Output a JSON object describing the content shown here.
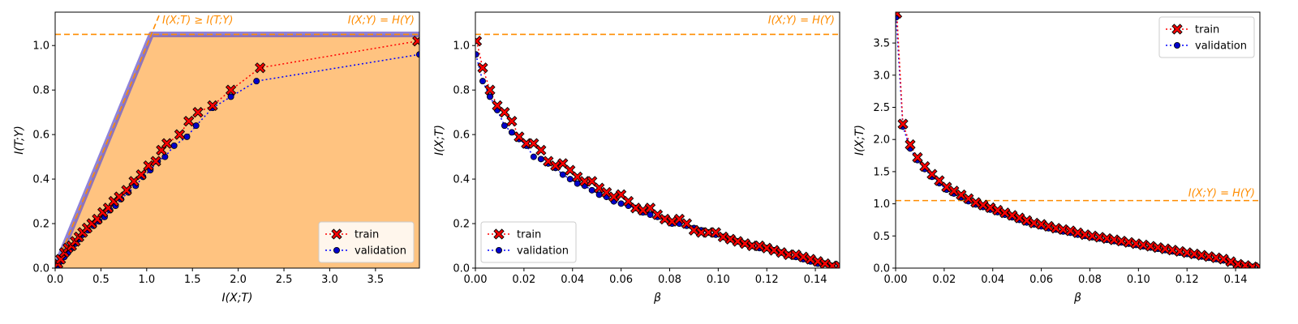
{
  "colors": {
    "train": "#ff0000",
    "train_edge": "#000000",
    "validation": "#0000cc",
    "validation_line": "#0000ff",
    "bound": "#ff8c00",
    "region": "#ffc380",
    "boundary": "#6a5acd"
  },
  "legend": {
    "train": "train",
    "validation": "validation"
  },
  "chart_data": [
    {
      "id": "left",
      "type": "scatter",
      "xlabel": "I(X;T)",
      "ylabel": "I(T;Y)",
      "xlim": [
        0,
        3.98
      ],
      "ylim": [
        0,
        1.15
      ],
      "xticks": [
        0,
        0.5,
        1,
        1.5,
        2,
        2.5,
        3,
        3.5
      ],
      "xtick_labels": [
        "0.0",
        "0.5",
        "1.0",
        "1.5",
        "2.0",
        "2.5",
        "3.0",
        "3.5"
      ],
      "yticks": [
        0,
        0.2,
        0.4,
        0.6,
        0.8,
        1
      ],
      "ytick_labels": [
        "0.0",
        "0.2",
        "0.4",
        "0.6",
        "0.8",
        "1.0"
      ],
      "hline": {
        "y": 1.05,
        "label": "I(X;Y) = H(Y)"
      },
      "diag_label": "I(X;T) ≥ I(T;Y)",
      "legend_position": "lower-right",
      "series": [
        {
          "name": "train",
          "x": [
            0.03,
            0.06,
            0.1,
            0.14,
            0.18,
            0.22,
            0.26,
            0.3,
            0.35,
            0.4,
            0.46,
            0.52,
            0.58,
            0.64,
            0.7,
            0.78,
            0.86,
            0.94,
            1.02,
            1.1,
            1.16,
            1.22,
            1.36,
            1.46,
            1.56,
            1.72,
            1.92,
            2.24,
            3.96
          ],
          "y": [
            0.02,
            0.04,
            0.07,
            0.09,
            0.1,
            0.12,
            0.14,
            0.16,
            0.18,
            0.2,
            0.22,
            0.25,
            0.27,
            0.3,
            0.32,
            0.35,
            0.39,
            0.42,
            0.46,
            0.48,
            0.53,
            0.56,
            0.6,
            0.66,
            0.7,
            0.73,
            0.8,
            0.9,
            1.02
          ]
        },
        {
          "name": "validation",
          "x": [
            0.02,
            0.06,
            0.1,
            0.14,
            0.18,
            0.22,
            0.26,
            0.3,
            0.36,
            0.42,
            0.48,
            0.54,
            0.6,
            0.66,
            0.72,
            0.8,
            0.88,
            0.96,
            1.04,
            1.12,
            1.2,
            1.3,
            1.44,
            1.54,
            1.72,
            1.92,
            2.2,
            3.98
          ],
          "y": [
            0.01,
            0.03,
            0.05,
            0.07,
            0.09,
            0.11,
            0.13,
            0.15,
            0.17,
            0.19,
            0.21,
            0.23,
            0.26,
            0.28,
            0.31,
            0.34,
            0.37,
            0.41,
            0.44,
            0.48,
            0.5,
            0.55,
            0.59,
            0.64,
            0.72,
            0.77,
            0.84,
            0.96
          ]
        }
      ]
    },
    {
      "id": "middle",
      "type": "scatter",
      "xlabel": "β",
      "ylabel": "I(X;T)",
      "xlim": [
        0,
        0.15
      ],
      "ylim": [
        0,
        1.15
      ],
      "xticks": [
        0,
        0.02,
        0.04,
        0.06,
        0.08,
        0.1,
        0.12,
        0.14
      ],
      "xtick_labels": [
        "0.00",
        "0.02",
        "0.04",
        "0.06",
        "0.08",
        "0.10",
        "0.12",
        "0.14"
      ],
      "yticks": [
        0,
        0.2,
        0.4,
        0.6,
        0.8,
        1
      ],
      "ytick_labels": [
        "0.0",
        "0.2",
        "0.4",
        "0.6",
        "0.8",
        "1.0"
      ],
      "hline": {
        "y": 1.05,
        "label": "I(X;Y) = H(Y)"
      },
      "legend_position": "lower-left",
      "series": [
        {
          "name": "train",
          "x": [
            0.0005,
            0.003,
            0.006,
            0.009,
            0.012,
            0.015,
            0.018,
            0.021,
            0.024,
            0.027,
            0.03,
            0.033,
            0.036,
            0.039,
            0.042,
            0.045,
            0.048,
            0.051,
            0.054,
            0.057,
            0.06,
            0.063,
            0.066,
            0.069,
            0.072,
            0.075,
            0.078,
            0.081,
            0.084,
            0.087,
            0.09,
            0.093,
            0.096,
            0.099,
            0.102,
            0.105,
            0.108,
            0.111,
            0.114,
            0.117,
            0.12,
            0.123,
            0.126,
            0.129,
            0.132,
            0.135,
            0.138,
            0.141,
            0.144,
            0.147,
            0.15
          ],
          "y": [
            1.02,
            0.9,
            0.8,
            0.73,
            0.7,
            0.66,
            0.59,
            0.56,
            0.56,
            0.53,
            0.48,
            0.46,
            0.47,
            0.44,
            0.41,
            0.39,
            0.39,
            0.36,
            0.34,
            0.32,
            0.33,
            0.3,
            0.27,
            0.26,
            0.27,
            0.24,
            0.22,
            0.21,
            0.22,
            0.2,
            0.17,
            0.16,
            0.16,
            0.16,
            0.14,
            0.13,
            0.12,
            0.11,
            0.1,
            0.1,
            0.09,
            0.08,
            0.07,
            0.06,
            0.06,
            0.05,
            0.04,
            0.03,
            0.02,
            0.01,
            0.01
          ]
        },
        {
          "name": "validation",
          "x": [
            0.0002,
            0.003,
            0.006,
            0.009,
            0.012,
            0.015,
            0.018,
            0.021,
            0.024,
            0.027,
            0.03,
            0.033,
            0.036,
            0.039,
            0.042,
            0.045,
            0.048,
            0.051,
            0.054,
            0.057,
            0.06,
            0.063,
            0.066,
            0.069,
            0.072,
            0.075,
            0.078,
            0.081,
            0.084,
            0.087,
            0.09,
            0.093,
            0.096,
            0.099,
            0.102,
            0.105,
            0.108,
            0.111,
            0.114,
            0.117,
            0.12,
            0.123,
            0.126,
            0.129,
            0.132,
            0.135,
            0.138,
            0.141,
            0.144,
            0.147,
            0.15
          ],
          "y": [
            0.96,
            0.84,
            0.77,
            0.71,
            0.64,
            0.61,
            0.58,
            0.55,
            0.5,
            0.49,
            0.47,
            0.45,
            0.42,
            0.4,
            0.38,
            0.37,
            0.35,
            0.33,
            0.32,
            0.3,
            0.29,
            0.28,
            0.27,
            0.25,
            0.24,
            0.23,
            0.22,
            0.2,
            0.2,
            0.19,
            0.18,
            0.17,
            0.16,
            0.15,
            0.14,
            0.13,
            0.12,
            0.11,
            0.1,
            0.09,
            0.09,
            0.08,
            0.07,
            0.06,
            0.05,
            0.04,
            0.03,
            0.02,
            0.02,
            0.01,
            0.01
          ]
        }
      ]
    },
    {
      "id": "right",
      "type": "scatter",
      "xlabel": "β",
      "ylabel": "I(X;T)",
      "xlim": [
        0,
        0.15
      ],
      "ylim": [
        0,
        3.98
      ],
      "xticks": [
        0,
        0.02,
        0.04,
        0.06,
        0.08,
        0.1,
        0.12,
        0.14
      ],
      "xtick_labels": [
        "0.00",
        "0.02",
        "0.04",
        "0.06",
        "0.08",
        "0.10",
        "0.12",
        "0.14"
      ],
      "yticks": [
        0,
        0.5,
        1,
        1.5,
        2,
        2.5,
        3,
        3.5
      ],
      "ytick_labels": [
        "0.0",
        "0.5",
        "1.0",
        "1.5",
        "2.0",
        "2.5",
        "3.0",
        "3.5"
      ],
      "hline": {
        "y": 1.05,
        "label": "I(X;Y) = H(Y)"
      },
      "legend_position": "top-right",
      "series": [
        {
          "name": "train",
          "x": [
            0.0005,
            0.003,
            0.006,
            0.009,
            0.012,
            0.015,
            0.018,
            0.021,
            0.024,
            0.027,
            0.03,
            0.033,
            0.036,
            0.039,
            0.042,
            0.045,
            0.048,
            0.051,
            0.054,
            0.057,
            0.06,
            0.063,
            0.066,
            0.069,
            0.072,
            0.075,
            0.078,
            0.081,
            0.084,
            0.087,
            0.09,
            0.093,
            0.096,
            0.099,
            0.102,
            0.105,
            0.108,
            0.111,
            0.114,
            0.117,
            0.12,
            0.123,
            0.126,
            0.129,
            0.132,
            0.135,
            0.138,
            0.141,
            0.144,
            0.147,
            0.15
          ],
          "y": [
            3.96,
            2.24,
            1.92,
            1.72,
            1.58,
            1.46,
            1.36,
            1.26,
            1.2,
            1.14,
            1.08,
            1.02,
            0.98,
            0.94,
            0.9,
            0.86,
            0.82,
            0.78,
            0.74,
            0.7,
            0.68,
            0.65,
            0.62,
            0.6,
            0.58,
            0.55,
            0.52,
            0.5,
            0.48,
            0.46,
            0.44,
            0.42,
            0.4,
            0.38,
            0.36,
            0.34,
            0.32,
            0.3,
            0.28,
            0.26,
            0.24,
            0.22,
            0.2,
            0.18,
            0.16,
            0.14,
            0.1,
            0.06,
            0.04,
            0.02,
            0.01
          ]
        },
        {
          "name": "validation",
          "x": [
            0.0002,
            0.003,
            0.006,
            0.009,
            0.012,
            0.015,
            0.018,
            0.021,
            0.024,
            0.027,
            0.03,
            0.033,
            0.036,
            0.039,
            0.042,
            0.045,
            0.048,
            0.051,
            0.054,
            0.057,
            0.06,
            0.063,
            0.066,
            0.069,
            0.072,
            0.075,
            0.078,
            0.081,
            0.084,
            0.087,
            0.09,
            0.093,
            0.096,
            0.099,
            0.102,
            0.105,
            0.108,
            0.111,
            0.114,
            0.117,
            0.12,
            0.123,
            0.126,
            0.129,
            0.132,
            0.135,
            0.138,
            0.141,
            0.144,
            0.147,
            0.15
          ],
          "y": [
            3.9,
            2.2,
            1.86,
            1.68,
            1.54,
            1.42,
            1.32,
            1.22,
            1.16,
            1.1,
            1.04,
            0.99,
            0.95,
            0.91,
            0.87,
            0.83,
            0.79,
            0.75,
            0.71,
            0.68,
            0.65,
            0.62,
            0.6,
            0.57,
            0.55,
            0.52,
            0.5,
            0.48,
            0.46,
            0.44,
            0.42,
            0.4,
            0.38,
            0.36,
            0.34,
            0.32,
            0.3,
            0.28,
            0.26,
            0.24,
            0.22,
            0.2,
            0.18,
            0.16,
            0.14,
            0.12,
            0.09,
            0.06,
            0.04,
            0.02,
            0.01
          ]
        }
      ]
    }
  ]
}
